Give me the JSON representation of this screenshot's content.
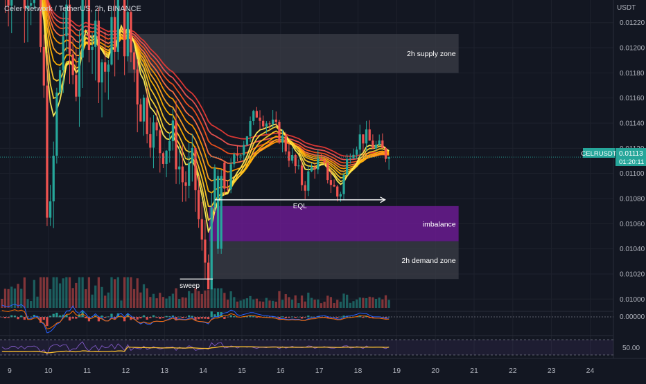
{
  "header": {
    "symbol_title": "Celer Network / TetherUS, 2h, BINANCE",
    "currency": "USDT"
  },
  "price_badge": {
    "symbol": "CELRUSDT",
    "price": "0.01113",
    "countdown": "01:20:11",
    "color": "#26a69a"
  },
  "y_ticks": [
    "0.01220",
    "0.01200",
    "0.01180",
    "0.01160",
    "0.01140",
    "0.01120",
    "0.01100",
    "0.01080",
    "0.01060",
    "0.01040",
    "0.01020",
    "0.01000"
  ],
  "x_ticks": [
    "9",
    "10",
    "11",
    "12",
    "13",
    "14",
    "15",
    "16",
    "17",
    "18",
    "19",
    "20",
    "21",
    "22",
    "23",
    "24"
  ],
  "indicators": {
    "oscillator_label": "0.00000",
    "rsi_label": "50.00"
  },
  "zones": [
    {
      "name": "supply",
      "label": "2h supply zone",
      "top": 0.01211,
      "bottom": 0.0118,
      "color": "#3b3e47"
    },
    {
      "name": "imbalance",
      "label": "imbalance",
      "top": 0.01074,
      "bottom": 0.01046,
      "color": "#6a1b8f"
    },
    {
      "name": "demand",
      "label": "2h demand zone",
      "top": 0.01046,
      "bottom": 0.01016,
      "color": "#3b3e47"
    }
  ],
  "annotations": {
    "eql_label": "EQL",
    "eql_price": 0.01079,
    "sweep_label": "sweep",
    "sweep_price": 0.01016
  },
  "chart_data": {
    "type": "candlestick",
    "ylim": [
      0.00993,
      0.01238
    ],
    "xlim": [
      8.75,
      24.6
    ],
    "last_price": 0.01113,
    "colors": {
      "up": "#26a69a",
      "down": "#ef5350"
    },
    "ribbon_colors": [
      "#e53935",
      "#ef5350",
      "#f4511e",
      "#ff7043",
      "#ff9800",
      "#ffa726",
      "#ffb300",
      "#ffca28",
      "#fdd835",
      "#ffee58"
    ],
    "key_points": [
      [
        8.8,
        0.01255
      ],
      [
        9.2,
        0.0126
      ],
      [
        9.7,
        0.0125
      ],
      [
        9.95,
        0.0112
      ],
      [
        10.0,
        0.01025
      ],
      [
        10.2,
        0.0115
      ],
      [
        10.4,
        0.0122
      ],
      [
        10.7,
        0.0117
      ],
      [
        10.9,
        0.0124
      ],
      [
        11.2,
        0.0121
      ],
      [
        11.5,
        0.0118
      ],
      [
        11.8,
        0.0123
      ],
      [
        12.05,
        0.0121
      ],
      [
        12.3,
        0.0117
      ],
      [
        12.6,
        0.0114
      ],
      [
        12.9,
        0.0112
      ],
      [
        13.2,
        0.0113
      ],
      [
        13.5,
        0.0109
      ],
      [
        13.75,
        0.01105
      ],
      [
        13.95,
        0.0104
      ],
      [
        14.15,
        0.01022
      ],
      [
        14.3,
        0.01098
      ],
      [
        14.6,
        0.01088
      ],
      [
        14.8,
        0.0111
      ],
      [
        15.1,
        0.0113
      ],
      [
        15.4,
        0.0115
      ],
      [
        15.7,
        0.0114
      ],
      [
        16.0,
        0.0113
      ],
      [
        16.3,
        0.0111
      ],
      [
        16.6,
        0.0109
      ],
      [
        16.9,
        0.0111
      ],
      [
        17.2,
        0.011
      ],
      [
        17.5,
        0.0108
      ],
      [
        17.8,
        0.0112
      ],
      [
        18.1,
        0.0113
      ],
      [
        18.5,
        0.0112
      ],
      [
        18.85,
        0.01113
      ]
    ]
  }
}
